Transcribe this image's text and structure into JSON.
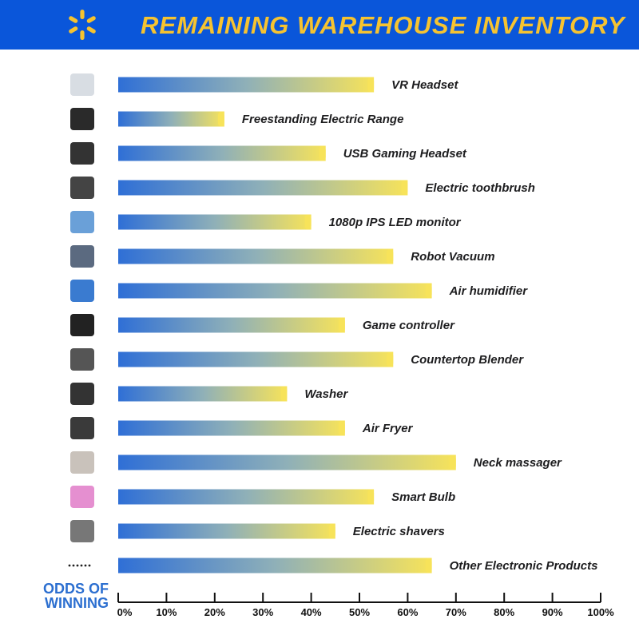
{
  "header": {
    "title": "REMAINING WAREHOUSE INVENTORY",
    "logo": "walmart-spark-icon",
    "bg_color": "#0a56da",
    "title_color": "#f6c330"
  },
  "axis_title": [
    "ODDS OF",
    "WINNING"
  ],
  "chart_data": {
    "type": "bar",
    "orientation": "horizontal",
    "title": "REMAINING WAREHOUSE INVENTORY",
    "xlabel": "ODDS OF WINNING",
    "xlim": [
      0,
      100
    ],
    "x_ticks": [
      "0%",
      "10%",
      "20%",
      "30%",
      "40%",
      "50%",
      "60%",
      "70%",
      "80%",
      "90%",
      "100%"
    ],
    "categories": [
      "VR Headset",
      "Freestanding Electric Range",
      "USB Gaming Headset",
      "Electric toothbrush",
      "1080p IPS LED monitor",
      "Robot Vacuum",
      "Air humidifier",
      "Game controller",
      "Countertop Blender",
      "Washer",
      "Air Fryer",
      "Neck massager",
      "Smart Bulb",
      "Electric shavers",
      "Other Electronic Products"
    ],
    "values": [
      53,
      22,
      43,
      60,
      40,
      57,
      65,
      47,
      57,
      35,
      47,
      70,
      53,
      45,
      65
    ],
    "icons": [
      "vr-headset-icon",
      "electric-range-icon",
      "gaming-headset-icon",
      "toothbrush-icon",
      "monitor-icon",
      "robot-vacuum-icon",
      "humidifier-icon",
      "game-controller-icon",
      "blender-icon",
      "washer-icon",
      "air-fryer-icon",
      "neck-massager-icon",
      "smart-bulb-icon",
      "shaver-icon",
      "ellipsis-icon"
    ],
    "gradient": [
      "#2f6fd6",
      "#f7e35a"
    ]
  }
}
